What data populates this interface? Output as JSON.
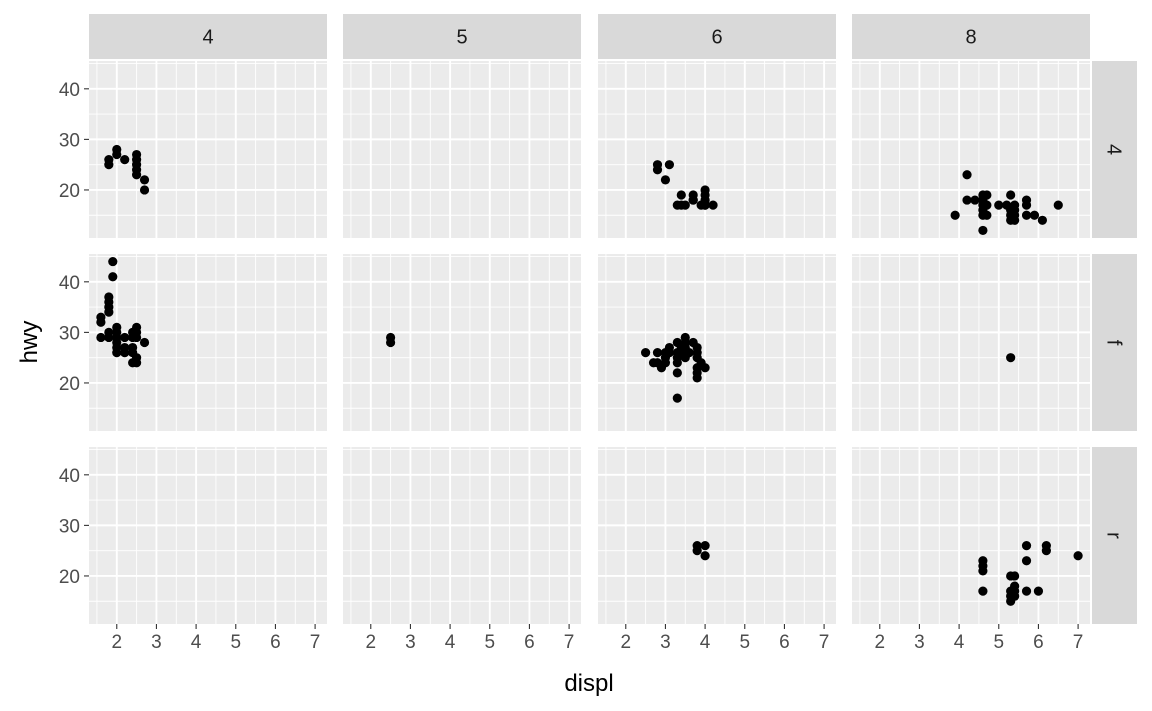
{
  "chart_data": {
    "type": "scatter",
    "facet_cols_var": "cyl",
    "facet_rows_var": "drv",
    "facet_cols": [
      "4",
      "5",
      "6",
      "8"
    ],
    "facet_rows": [
      "4",
      "f",
      "r"
    ],
    "xlabel": "displ",
    "ylabel": "hwy",
    "xlim": [
      1.3,
      7.3
    ],
    "ylim": [
      10.5,
      45.5
    ],
    "x_ticks": [
      2,
      3,
      4,
      5,
      6,
      7
    ],
    "y_ticks": [
      20,
      30,
      40
    ],
    "grid": true,
    "panel_background": "#ebebeb",
    "strip_background": "#d9d9d9",
    "point_color": "#000000",
    "panels": [
      {
        "row": "4",
        "col": "4",
        "points": [
          [
            1.8,
            25
          ],
          [
            1.8,
            26
          ],
          [
            2.0,
            28
          ],
          [
            2.0,
            27
          ],
          [
            2.2,
            26
          ],
          [
            2.5,
            27
          ],
          [
            2.5,
            26
          ],
          [
            2.5,
            25
          ],
          [
            2.5,
            24
          ],
          [
            2.5,
            23
          ],
          [
            2.7,
            22
          ],
          [
            2.7,
            20
          ]
        ]
      },
      {
        "row": "4",
        "col": "5",
        "points": []
      },
      {
        "row": "4",
        "col": "6",
        "points": [
          [
            2.8,
            25
          ],
          [
            2.8,
            24
          ],
          [
            3.0,
            22
          ],
          [
            3.1,
            25
          ],
          [
            3.3,
            17
          ],
          [
            3.4,
            19
          ],
          [
            3.4,
            17
          ],
          [
            3.5,
            17
          ],
          [
            3.7,
            19
          ],
          [
            3.7,
            18
          ],
          [
            3.7,
            18
          ],
          [
            4.0,
            20
          ],
          [
            4.0,
            19
          ],
          [
            4.0,
            18
          ],
          [
            4.0,
            17
          ],
          [
            4.2,
            17
          ],
          [
            3.9,
            17
          ],
          [
            4.0,
            17
          ]
        ]
      },
      {
        "row": "4",
        "col": "8",
        "points": [
          [
            4.2,
            23
          ],
          [
            3.9,
            15
          ],
          [
            4.2,
            18
          ],
          [
            4.4,
            18
          ],
          [
            4.6,
            19
          ],
          [
            4.6,
            18
          ],
          [
            4.6,
            17
          ],
          [
            4.6,
            16
          ],
          [
            4.6,
            15
          ],
          [
            4.6,
            12
          ],
          [
            4.7,
            19
          ],
          [
            4.7,
            17
          ],
          [
            4.7,
            15
          ],
          [
            5.0,
            17
          ],
          [
            5.2,
            17
          ],
          [
            5.3,
            19
          ],
          [
            5.3,
            16
          ],
          [
            5.3,
            15
          ],
          [
            5.3,
            14
          ],
          [
            5.4,
            17
          ],
          [
            5.4,
            16
          ],
          [
            5.4,
            15
          ],
          [
            5.4,
            14
          ],
          [
            5.7,
            18
          ],
          [
            5.7,
            17
          ],
          [
            5.7,
            15
          ],
          [
            5.9,
            15
          ],
          [
            6.1,
            14
          ],
          [
            6.5,
            17
          ]
        ]
      },
      {
        "row": "f",
        "col": "4",
        "points": [
          [
            1.6,
            32
          ],
          [
            1.6,
            33
          ],
          [
            1.6,
            29
          ],
          [
            1.8,
            29
          ],
          [
            1.8,
            30
          ],
          [
            1.8,
            34
          ],
          [
            1.8,
            35
          ],
          [
            1.8,
            36
          ],
          [
            1.8,
            37
          ],
          [
            1.9,
            41
          ],
          [
            1.9,
            44
          ],
          [
            2.0,
            30
          ],
          [
            2.0,
            29
          ],
          [
            2.0,
            28
          ],
          [
            2.0,
            27
          ],
          [
            2.0,
            26
          ],
          [
            2.0,
            31
          ],
          [
            2.2,
            29
          ],
          [
            2.2,
            27
          ],
          [
            2.2,
            26
          ],
          [
            2.4,
            30
          ],
          [
            2.4,
            29
          ],
          [
            2.4,
            27
          ],
          [
            2.4,
            26
          ],
          [
            2.4,
            24
          ],
          [
            2.5,
            31
          ],
          [
            2.5,
            30
          ],
          [
            2.5,
            29
          ],
          [
            2.5,
            25
          ],
          [
            2.5,
            24
          ],
          [
            2.7,
            28
          ]
        ]
      },
      {
        "row": "f",
        "col": "5",
        "points": [
          [
            2.5,
            29
          ],
          [
            2.5,
            28
          ]
        ]
      },
      {
        "row": "f",
        "col": "6",
        "points": [
          [
            2.5,
            26
          ],
          [
            2.7,
            24
          ],
          [
            2.8,
            26
          ],
          [
            2.8,
            24
          ],
          [
            2.9,
            23
          ],
          [
            3.0,
            26
          ],
          [
            3.0,
            25
          ],
          [
            3.0,
            24
          ],
          [
            3.1,
            27
          ],
          [
            3.1,
            26
          ],
          [
            3.3,
            28
          ],
          [
            3.3,
            26
          ],
          [
            3.3,
            25
          ],
          [
            3.3,
            24
          ],
          [
            3.3,
            22
          ],
          [
            3.3,
            17
          ],
          [
            3.4,
            27
          ],
          [
            3.4,
            26
          ],
          [
            3.5,
            29
          ],
          [
            3.5,
            28
          ],
          [
            3.5,
            27
          ],
          [
            3.5,
            26
          ],
          [
            3.5,
            25
          ],
          [
            3.6,
            26
          ],
          [
            3.7,
            28
          ],
          [
            3.8,
            27
          ],
          [
            3.8,
            26
          ],
          [
            3.8,
            25
          ],
          [
            3.8,
            23
          ],
          [
            3.8,
            22
          ],
          [
            3.8,
            21
          ],
          [
            3.9,
            24
          ],
          [
            4.0,
            23
          ]
        ]
      },
      {
        "row": "f",
        "col": "8",
        "points": [
          [
            5.3,
            25
          ]
        ]
      },
      {
        "row": "r",
        "col": "4",
        "points": []
      },
      {
        "row": "r",
        "col": "5",
        "points": []
      },
      {
        "row": "r",
        "col": "6",
        "points": [
          [
            3.8,
            26
          ],
          [
            3.8,
            25
          ],
          [
            4.0,
            26
          ],
          [
            4.0,
            24
          ]
        ]
      },
      {
        "row": "r",
        "col": "8",
        "points": [
          [
            4.6,
            23
          ],
          [
            4.6,
            22
          ],
          [
            4.6,
            21
          ],
          [
            4.6,
            17
          ],
          [
            5.3,
            20
          ],
          [
            5.3,
            17
          ],
          [
            5.3,
            16
          ],
          [
            5.3,
            15
          ],
          [
            5.4,
            20
          ],
          [
            5.4,
            18
          ],
          [
            5.4,
            17
          ],
          [
            5.4,
            16
          ],
          [
            5.7,
            26
          ],
          [
            5.7,
            23
          ],
          [
            5.7,
            17
          ],
          [
            6.0,
            17
          ],
          [
            6.2,
            26
          ],
          [
            6.2,
            25
          ],
          [
            7.0,
            24
          ]
        ]
      }
    ]
  }
}
